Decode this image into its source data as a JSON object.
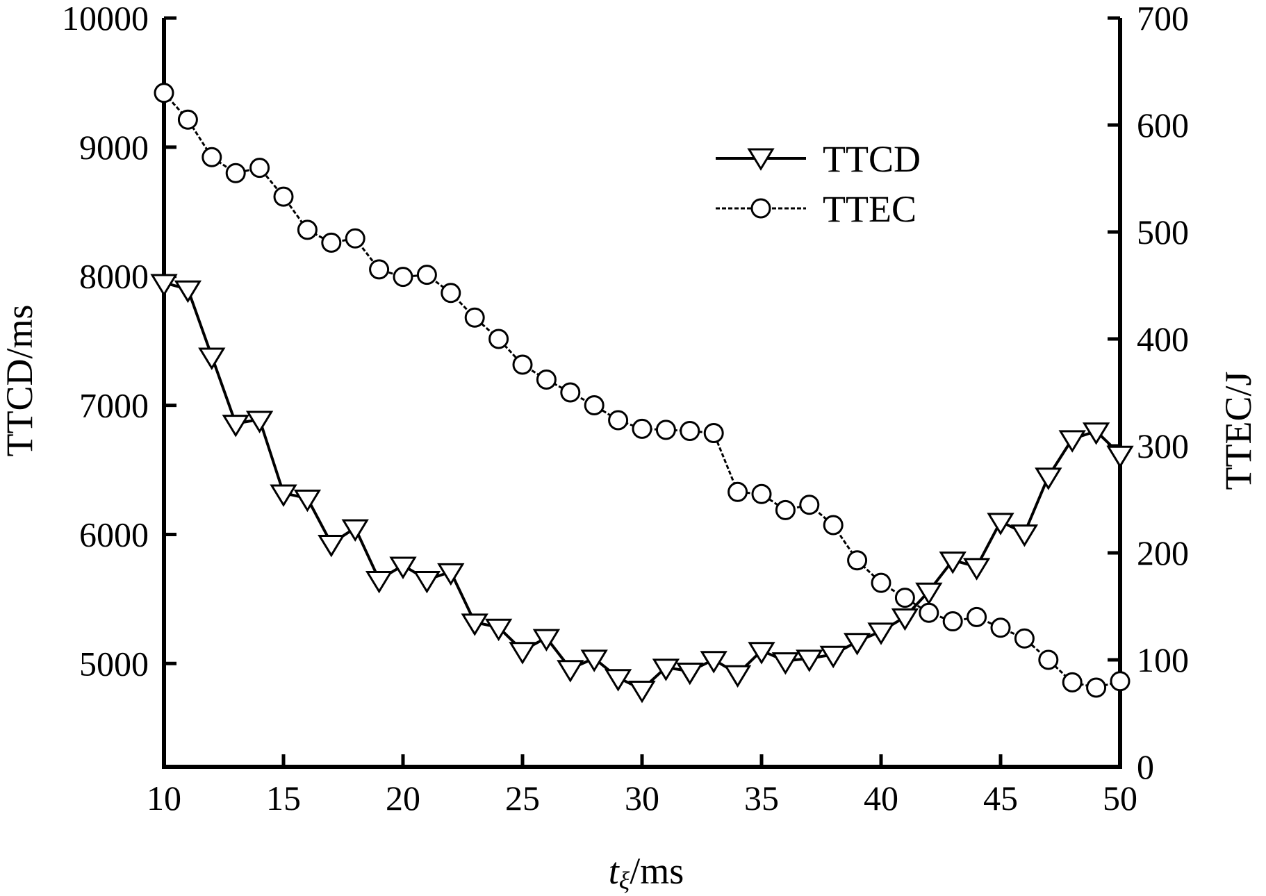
{
  "chart_data": {
    "type": "line",
    "xlabel_main": "t",
    "xlabel_sub": "ξ",
    "xlabel_unit": "/ms",
    "ylabel_left": "TTCD/ms",
    "ylabel_right": "TTEC/J",
    "xlim": [
      10,
      50
    ],
    "ylim_left": [
      4200,
      10000
    ],
    "ylim_right": [
      0,
      700
    ],
    "x_ticks": [
      "10",
      "15",
      "20",
      "25",
      "30",
      "35",
      "40",
      "45",
      "50"
    ],
    "y_left_ticks": [
      "5000",
      "6000",
      "7000",
      "8000",
      "9000",
      "10000"
    ],
    "y_right_ticks": [
      "0",
      "100",
      "200",
      "300",
      "400",
      "500",
      "600",
      "700"
    ],
    "grid": false,
    "legend_position": "top-center",
    "x": [
      10,
      11,
      12,
      13,
      14,
      15,
      16,
      17,
      18,
      19,
      20,
      21,
      22,
      23,
      24,
      25,
      26,
      27,
      28,
      29,
      30,
      31,
      32,
      33,
      34,
      35,
      36,
      37,
      38,
      39,
      40,
      41,
      42,
      43,
      44,
      45,
      46,
      47,
      48,
      49,
      50
    ],
    "series": [
      {
        "name": "TTCD",
        "axis": "left",
        "marker": "triangle-down",
        "line": "solid",
        "values": [
          7950,
          7900,
          7380,
          6860,
          6890,
          6320,
          6280,
          5930,
          6050,
          5650,
          5760,
          5650,
          5710,
          5320,
          5280,
          5100,
          5200,
          4960,
          5040,
          4890,
          4800,
          4970,
          4940,
          5030,
          4920,
          5100,
          5020,
          5040,
          5070,
          5170,
          5250,
          5360,
          5560,
          5800,
          5750,
          6100,
          6010,
          6450,
          6740,
          6800,
          6620
        ]
      },
      {
        "name": "TTEC",
        "axis": "right",
        "marker": "circle",
        "line": "dashed",
        "values": [
          630,
          605,
          570,
          555,
          560,
          533,
          502,
          490,
          494,
          465,
          458,
          460,
          443,
          420,
          400,
          376,
          362,
          350,
          338,
          324,
          316,
          315,
          314,
          312,
          257,
          255,
          240,
          245,
          226,
          193,
          172,
          158,
          144,
          136,
          140,
          130,
          120,
          100,
          79,
          74,
          80
        ]
      }
    ]
  }
}
